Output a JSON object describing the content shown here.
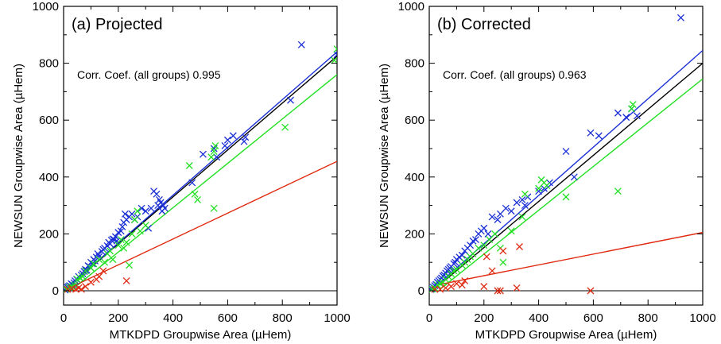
{
  "chart_data": [
    {
      "type": "scatter",
      "title": "(a) Projected",
      "xlabel": "MTKDPD Groupwise Area (µHem)",
      "ylabel": "NEWSUN Groupwise Area (µHem)",
      "annotation": "Corr. Coef. (all groups) 0.995",
      "xlim": [
        0,
        1000
      ],
      "ylim": [
        -50,
        1000
      ],
      "xticks": [
        "0",
        "200",
        "400",
        "600",
        "800",
        "1000"
      ],
      "yticks": [
        "0",
        "200",
        "400",
        "600",
        "800",
        "1000"
      ],
      "marker": "x",
      "colors": {
        "blue": "#1a2fd6",
        "green": "#22e022",
        "red": "#e02a10",
        "black": "#000000"
      },
      "series": [
        {
          "color": "blue",
          "points": [
            [
              5,
              3
            ],
            [
              10,
              8
            ],
            [
              14,
              12
            ],
            [
              18,
              15
            ],
            [
              22,
              18
            ],
            [
              28,
              25
            ],
            [
              32,
              22
            ],
            [
              38,
              28
            ],
            [
              42,
              35
            ],
            [
              48,
              40
            ],
            [
              55,
              50
            ],
            [
              60,
              45
            ],
            [
              65,
              55
            ],
            [
              70,
              60
            ],
            [
              75,
              68
            ],
            [
              80,
              75
            ],
            [
              85,
              72
            ],
            [
              90,
              88
            ],
            [
              95,
              85
            ],
            [
              100,
              100
            ],
            [
              105,
              95
            ],
            [
              110,
              110
            ],
            [
              115,
              105
            ],
            [
              120,
              118
            ],
            [
              125,
              130
            ],
            [
              130,
              120
            ],
            [
              140,
              138
            ],
            [
              145,
              145
            ],
            [
              150,
              150
            ],
            [
              160,
              158
            ],
            [
              165,
              170
            ],
            [
              170,
              165
            ],
            [
              175,
              178
            ],
            [
              180,
              182
            ],
            [
              185,
              180
            ],
            [
              190,
              190
            ],
            [
              195,
              175
            ],
            [
              200,
              205
            ],
            [
              210,
              210
            ],
            [
              215,
              225
            ],
            [
              220,
              240
            ],
            [
              225,
              270
            ],
            [
              230,
              250
            ],
            [
              240,
              260
            ],
            [
              250,
              270
            ],
            [
              260,
              250
            ],
            [
              270,
              260
            ],
            [
              285,
              290
            ],
            [
              300,
              280
            ],
            [
              310,
              220
            ],
            [
              320,
              290
            ],
            [
              330,
              350
            ],
            [
              340,
              340
            ],
            [
              345,
              300
            ],
            [
              350,
              320
            ],
            [
              355,
              310
            ],
            [
              360,
              280
            ],
            [
              365,
              300
            ],
            [
              370,
              290
            ],
            [
              470,
              380
            ],
            [
              510,
              480
            ],
            [
              550,
              500
            ],
            [
              560,
              470
            ],
            [
              590,
              510
            ],
            [
              600,
              530
            ],
            [
              620,
              545
            ],
            [
              660,
              525
            ],
            [
              665,
              540
            ],
            [
              830,
              670
            ],
            [
              870,
              865
            ],
            [
              1000,
              830
            ]
          ]
        },
        {
          "color": "green",
          "points": [
            [
              10,
              5
            ],
            [
              20,
              12
            ],
            [
              30,
              15
            ],
            [
              40,
              20
            ],
            [
              50,
              40
            ],
            [
              60,
              45
            ],
            [
              70,
              50
            ],
            [
              80,
              70
            ],
            [
              100,
              80
            ],
            [
              110,
              95
            ],
            [
              130,
              110
            ],
            [
              150,
              100
            ],
            [
              160,
              130
            ],
            [
              170,
              140
            ],
            [
              180,
              110
            ],
            [
              200,
              160
            ],
            [
              210,
              180
            ],
            [
              220,
              150
            ],
            [
              230,
              170
            ],
            [
              240,
              90
            ],
            [
              250,
              200
            ],
            [
              260,
              250
            ],
            [
              270,
              280
            ],
            [
              280,
              210
            ],
            [
              300,
              230
            ],
            [
              460,
              440
            ],
            [
              480,
              340
            ],
            [
              490,
              320
            ],
            [
              540,
              470
            ],
            [
              550,
              490
            ],
            [
              555,
              510
            ],
            [
              550,
              290
            ],
            [
              810,
              575
            ],
            [
              990,
              810
            ],
            [
              1000,
              850
            ]
          ]
        },
        {
          "color": "red",
          "points": [
            [
              15,
              5
            ],
            [
              30,
              8
            ],
            [
              45,
              5
            ],
            [
              55,
              10
            ],
            [
              65,
              5
            ],
            [
              80,
              15
            ],
            [
              100,
              30
            ],
            [
              120,
              40
            ],
            [
              130,
              50
            ],
            [
              145,
              70
            ],
            [
              230,
              35
            ]
          ]
        }
      ],
      "fit_lines": [
        {
          "color": "black",
          "slope": 0.825,
          "intercept": 0
        },
        {
          "color": "blue",
          "slope": 0.84,
          "intercept": 0
        },
        {
          "color": "green",
          "slope": 0.78,
          "intercept": -20
        },
        {
          "color": "red",
          "slope": 0.455,
          "intercept": 0
        }
      ],
      "reference_line": {
        "color": "black",
        "y": 0
      }
    },
    {
      "type": "scatter",
      "title": "(b) Corrected",
      "xlabel": "MTKDPD Groupwise Area (µHem)",
      "ylabel": "NEWSUN Groupwise Area (µHem)",
      "annotation": "Corr. Coef. (all groups) 0.963",
      "xlim": [
        0,
        1000
      ],
      "ylim": [
        -50,
        1000
      ],
      "xticks": [
        "0",
        "200",
        "400",
        "600",
        "800",
        "1000"
      ],
      "yticks": [
        "0",
        "200",
        "400",
        "600",
        "800",
        "1000"
      ],
      "marker": "x",
      "colors": {
        "blue": "#1a2fd6",
        "green": "#22e022",
        "red": "#e02a10",
        "black": "#000000"
      },
      "series": [
        {
          "color": "blue",
          "points": [
            [
              5,
              5
            ],
            [
              10,
              8
            ],
            [
              15,
              12
            ],
            [
              20,
              18
            ],
            [
              25,
              22
            ],
            [
              30,
              30
            ],
            [
              35,
              35
            ],
            [
              40,
              40
            ],
            [
              45,
              45
            ],
            [
              50,
              52
            ],
            [
              55,
              55
            ],
            [
              60,
              62
            ],
            [
              65,
              70
            ],
            [
              70,
              75
            ],
            [
              75,
              80
            ],
            [
              80,
              85
            ],
            [
              90,
              95
            ],
            [
              95,
              100
            ],
            [
              100,
              110
            ],
            [
              110,
              118
            ],
            [
              120,
              125
            ],
            [
              130,
              140
            ],
            [
              140,
              150
            ],
            [
              150,
              160
            ],
            [
              160,
              175
            ],
            [
              170,
              180
            ],
            [
              180,
              200
            ],
            [
              190,
              210
            ],
            [
              200,
              220
            ],
            [
              215,
              200
            ],
            [
              230,
              260
            ],
            [
              250,
              250
            ],
            [
              260,
              270
            ],
            [
              280,
              290
            ],
            [
              300,
              280
            ],
            [
              320,
              310
            ],
            [
              340,
              320
            ],
            [
              350,
              300
            ],
            [
              360,
              330
            ],
            [
              400,
              350
            ],
            [
              420,
              360
            ],
            [
              440,
              380
            ],
            [
              500,
              490
            ],
            [
              530,
              400
            ],
            [
              590,
              555
            ],
            [
              620,
              545
            ],
            [
              690,
              625
            ],
            [
              720,
              610
            ],
            [
              740,
              640
            ],
            [
              760,
              615
            ],
            [
              920,
              960
            ]
          ]
        },
        {
          "color": "green",
          "points": [
            [
              10,
              5
            ],
            [
              20,
              10
            ],
            [
              30,
              20
            ],
            [
              40,
              25
            ],
            [
              50,
              30
            ],
            [
              60,
              40
            ],
            [
              70,
              50
            ],
            [
              80,
              60
            ],
            [
              90,
              70
            ],
            [
              100,
              75
            ],
            [
              120,
              90
            ],
            [
              130,
              100
            ],
            [
              140,
              110
            ],
            [
              150,
              120
            ],
            [
              160,
              130
            ],
            [
              180,
              150
            ],
            [
              200,
              160
            ],
            [
              220,
              180
            ],
            [
              240,
              200
            ],
            [
              260,
              150
            ],
            [
              270,
              100
            ],
            [
              300,
              210
            ],
            [
              340,
              260
            ],
            [
              350,
              340
            ],
            [
              400,
              360
            ],
            [
              410,
              390
            ],
            [
              420,
              380
            ],
            [
              430,
              370
            ],
            [
              500,
              330
            ],
            [
              690,
              350
            ],
            [
              740,
              640
            ],
            [
              745,
              655
            ]
          ]
        },
        {
          "color": "red",
          "points": [
            [
              20,
              5
            ],
            [
              40,
              5
            ],
            [
              60,
              10
            ],
            [
              80,
              15
            ],
            [
              100,
              25
            ],
            [
              120,
              20
            ],
            [
              130,
              35
            ],
            [
              200,
              15
            ],
            [
              210,
              120
            ],
            [
              230,
              70
            ],
            [
              250,
              0
            ],
            [
              260,
              0
            ],
            [
              270,
              140
            ],
            [
              320,
              10
            ],
            [
              330,
              155
            ],
            [
              590,
              0
            ]
          ]
        }
      ],
      "fit_lines": [
        {
          "color": "black",
          "slope": 0.81,
          "intercept": -10
        },
        {
          "color": "blue",
          "slope": 0.85,
          "intercept": -5
        },
        {
          "color": "green",
          "slope": 0.77,
          "intercept": -25
        },
        {
          "color": "red",
          "slope": 0.19,
          "intercept": 15
        }
      ],
      "reference_line": {
        "color": "black",
        "y": 0
      }
    }
  ]
}
